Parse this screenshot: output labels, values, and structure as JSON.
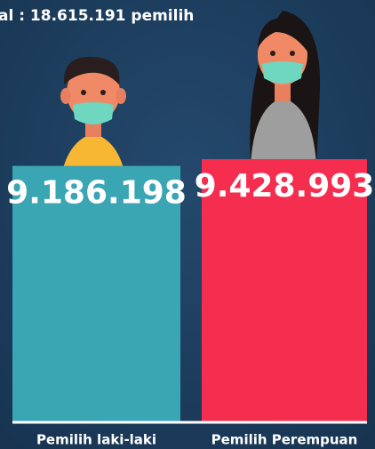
{
  "chart_data": {
    "type": "bar",
    "title": "al : 18.615.191 pemilih",
    "categories": [
      "Pemilih laki-laki",
      "Pemilih Perempuan"
    ],
    "series": [
      {
        "name": null,
        "colors": [
          "#3aa5b3",
          "#f52e4f"
        ],
        "values": [
          9186198,
          9428993
        ],
        "value_labels": [
          "9.186.198",
          "9.428.993"
        ]
      }
    ]
  }
}
